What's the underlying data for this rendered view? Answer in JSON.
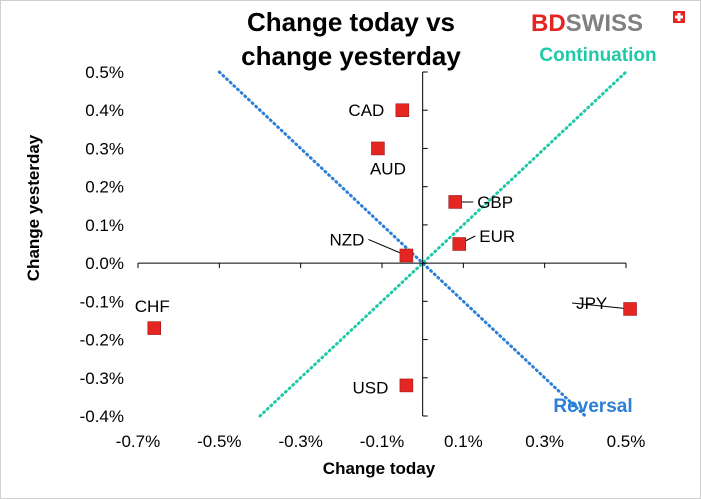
{
  "chart_data": {
    "type": "scatter",
    "title_lines": [
      "Change today vs",
      "change yesterday"
    ],
    "xlabel": "Change today",
    "ylabel": "Change yesterday",
    "xlim": [
      -0.7,
      0.5
    ],
    "ylim": [
      -0.4,
      0.5
    ],
    "x_ticks": [
      -0.7,
      -0.5,
      -0.3,
      -0.1,
      0.1,
      0.3,
      0.5
    ],
    "x_tick_labels": [
      "-0.7%",
      "-0.5%",
      "-0.3%",
      "-0.1%",
      "0.1%",
      "0.3%",
      "0.5%"
    ],
    "y_ticks": [
      0.5,
      0.4,
      0.3,
      0.2,
      0.1,
      0.0,
      -0.1,
      -0.2,
      -0.3,
      -0.4
    ],
    "y_tick_labels": [
      "0.5%",
      "0.4%",
      "0.3%",
      "0.2%",
      "0.1%",
      "0.0%",
      "-0.1%",
      "-0.2%",
      "-0.3%",
      "-0.4%"
    ],
    "points": [
      {
        "label": "CAD",
        "x": -0.05,
        "y": 0.4
      },
      {
        "label": "AUD",
        "x": -0.11,
        "y": 0.3
      },
      {
        "label": "GBP",
        "x": 0.08,
        "y": 0.16
      },
      {
        "label": "EUR",
        "x": 0.09,
        "y": 0.05
      },
      {
        "label": "NZD",
        "x": -0.04,
        "y": 0.02
      },
      {
        "label": "JPY",
        "x": 0.51,
        "y": -0.12
      },
      {
        "label": "CHF",
        "x": -0.66,
        "y": -0.17
      },
      {
        "label": "USD",
        "x": -0.04,
        "y": -0.32
      }
    ],
    "marker_color": "#e52521",
    "guides": [
      {
        "name": "Continuation",
        "from": [
          -0.4,
          -0.4
        ],
        "to": [
          0.5,
          0.5
        ],
        "color": "#1fc9a7"
      },
      {
        "name": "Reversal",
        "from": [
          -0.5,
          0.5
        ],
        "to": [
          0.4,
          -0.4
        ],
        "color": "#2b7fd6"
      }
    ],
    "grid": false
  },
  "logo": {
    "text_bd": "BD",
    "text_swiss": "SWISS",
    "color_bd": "#e52521",
    "color_swiss": "#808080"
  }
}
